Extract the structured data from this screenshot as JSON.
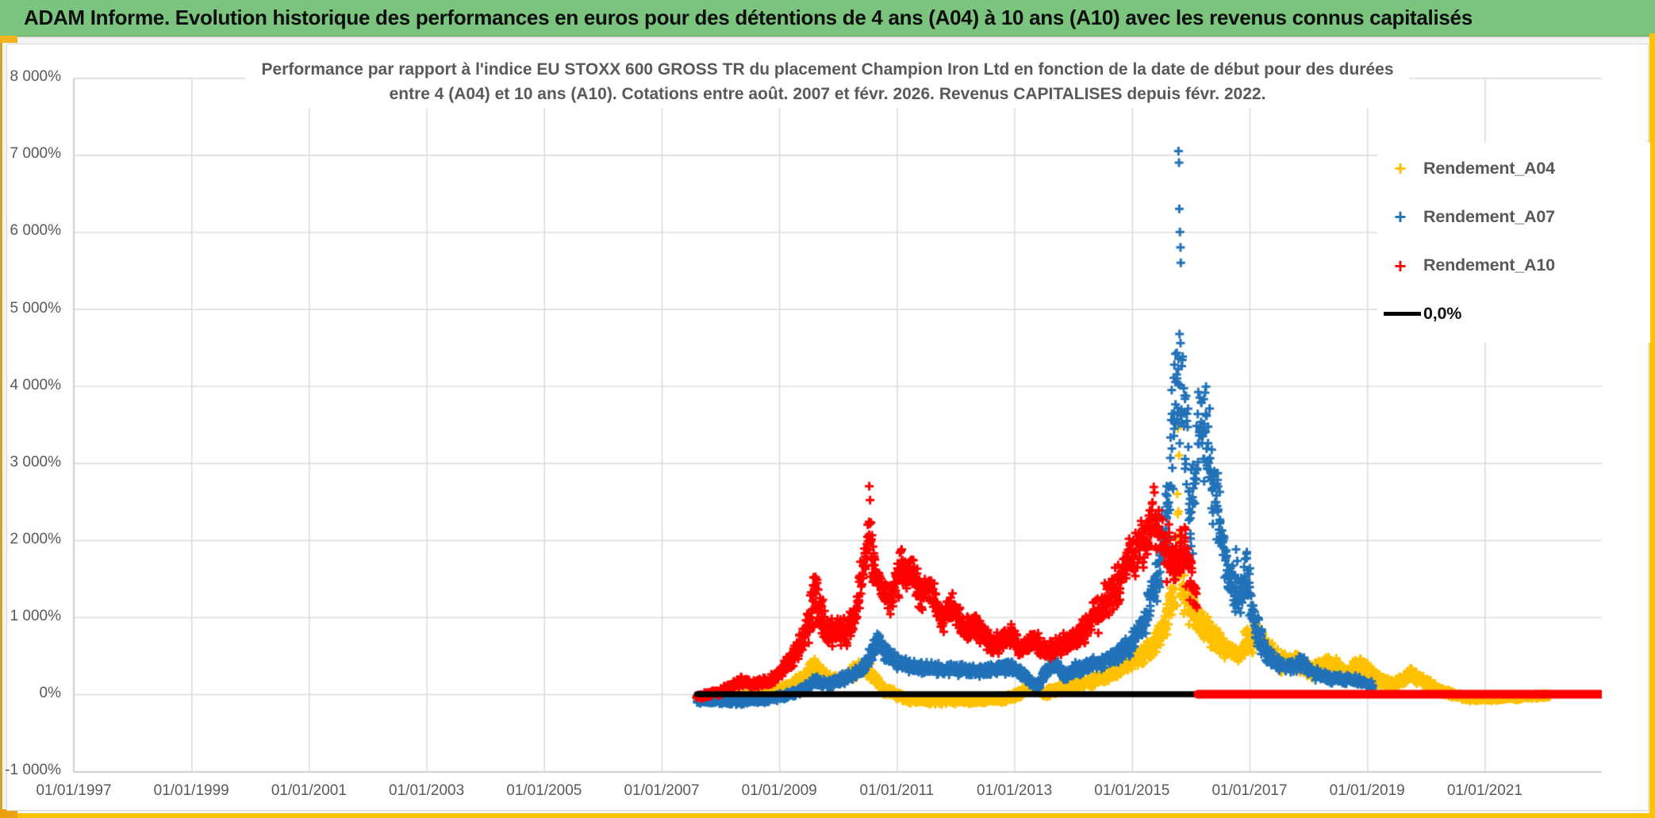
{
  "header": {
    "title": "ADAM Informe. Evolution historique des performances en euros pour des détentions de 4 ans (A04) à 10 ans (A10) avec les revenus connus capitalisés"
  },
  "colors": {
    "header_bg": "#7ac47e",
    "gold": "#ffc000",
    "accent_gold": "#f0b41c",
    "grid": "#d9d9d9",
    "axis_text": "#595959",
    "series_a04": "#ffc000",
    "series_a07": "#2272b8",
    "series_a10": "#ff0000",
    "zero_line": "#000000"
  },
  "chart_data": {
    "type": "scatter",
    "title_line1": "Performance par rapport à l'indice EU STOXX 600 GROSS TR  du placement Champion Iron Ltd en fonction de la date de début pour des durées",
    "title_line2": "entre 4 (A04) et 10 ans (A10). Cotations entre août. 2007 et févr. 2026. Revenus CAPITALISES depuis févr. 2022.",
    "grid": true,
    "legend_position": "top-right",
    "x_axis": {
      "label_format": "dd/mm/yyyy",
      "tick_years": [
        1997,
        1999,
        2001,
        2003,
        2005,
        2007,
        2009,
        2011,
        2013,
        2015,
        2017,
        2019,
        2021
      ],
      "tick_labels": [
        "01/01/1997",
        "01/01/1999",
        "01/01/2001",
        "01/01/2003",
        "01/01/2005",
        "01/01/2007",
        "01/01/2009",
        "01/01/2011",
        "01/01/2013",
        "01/01/2015",
        "01/01/2017",
        "01/01/2019",
        "01/01/2021"
      ],
      "min_year": 1997,
      "max_year": 2023
    },
    "y_axis": {
      "tick_values": [
        8000,
        7000,
        6000,
        5000,
        4000,
        3000,
        2000,
        1000,
        0,
        -1000
      ],
      "tick_labels": [
        "8 000%",
        "7 000%",
        "6 000%",
        "5 000%",
        "4 000%",
        "3 000%",
        "2 000%",
        "1 000%",
        "0%",
        "-1 000%"
      ],
      "min": -1000,
      "max": 8000,
      "step": 1000
    },
    "legend": [
      {
        "label": "Rendement_A04",
        "color": "#ffc000",
        "marker": "plus"
      },
      {
        "label": "Rendement_A07",
        "color": "#2272b8",
        "marker": "plus"
      },
      {
        "label": "Rendement_A10",
        "color": "#ff0000",
        "marker": "plus"
      },
      {
        "label": "0,0%",
        "color": "#000000",
        "marker": "line"
      }
    ],
    "series": [
      {
        "name": "Rendement_A04",
        "color": "#ffc000",
        "band": [
          [
            2007.6,
            -70,
            -10
          ],
          [
            2008.2,
            -70,
            10
          ],
          [
            2008.8,
            -40,
            60
          ],
          [
            2009.15,
            20,
            160
          ],
          [
            2009.4,
            110,
            280
          ],
          [
            2009.6,
            280,
            500
          ],
          [
            2009.75,
            140,
            340
          ],
          [
            2009.95,
            110,
            250
          ],
          [
            2010.15,
            140,
            320
          ],
          [
            2010.4,
            240,
            480
          ],
          [
            2010.55,
            180,
            400
          ],
          [
            2010.8,
            -40,
            120
          ],
          [
            2011.2,
            -120,
            -10
          ],
          [
            2011.6,
            -140,
            -40
          ],
          [
            2012.0,
            -130,
            -30
          ],
          [
            2012.4,
            -140,
            -40
          ],
          [
            2012.8,
            -110,
            -10
          ],
          [
            2013.1,
            -60,
            70
          ],
          [
            2013.3,
            60,
            200
          ],
          [
            2013.5,
            -50,
            70
          ],
          [
            2013.7,
            -10,
            130
          ],
          [
            2013.95,
            40,
            190
          ],
          [
            2014.25,
            70,
            230
          ],
          [
            2014.6,
            150,
            360
          ],
          [
            2014.9,
            260,
            490
          ],
          [
            2015.2,
            360,
            660
          ],
          [
            2015.45,
            520,
            920
          ],
          [
            2015.6,
            720,
            1250
          ],
          [
            2015.73,
            950,
            1900
          ],
          [
            2015.79,
            1100,
            3000
          ],
          [
            2015.88,
            950,
            1650
          ],
          [
            2016.0,
            820,
            1420
          ],
          [
            2016.2,
            700,
            1200
          ],
          [
            2016.5,
            460,
            820
          ],
          [
            2016.8,
            360,
            660
          ],
          [
            2017.0,
            520,
            960
          ],
          [
            2017.2,
            540,
            940
          ],
          [
            2017.35,
            380,
            720
          ],
          [
            2017.55,
            250,
            520
          ],
          [
            2017.8,
            300,
            610
          ],
          [
            2018.05,
            190,
            420
          ],
          [
            2018.35,
            260,
            560
          ],
          [
            2018.65,
            150,
            380
          ],
          [
            2018.9,
            250,
            510
          ],
          [
            2019.15,
            110,
            300
          ],
          [
            2019.45,
            60,
            200
          ],
          [
            2019.75,
            150,
            360
          ],
          [
            2020.0,
            60,
            220
          ],
          [
            2020.35,
            -40,
            80
          ],
          [
            2020.7,
            -90,
            -10
          ],
          [
            2021.1,
            -100,
            -20
          ],
          [
            2021.5,
            -80,
            -10
          ],
          [
            2021.9,
            -60,
            10
          ],
          [
            2022.1,
            -50,
            20
          ]
        ],
        "outliers": [
          [
            2015.77,
            2600
          ],
          [
            2015.78,
            3450
          ],
          [
            2015.8,
            3100
          ]
        ]
      },
      {
        "name": "Rendement_A07",
        "color": "#2272b8",
        "band": [
          [
            2007.6,
            -120,
            -50
          ],
          [
            2008.3,
            -140,
            -60
          ],
          [
            2008.8,
            -110,
            -30
          ],
          [
            2009.1,
            -70,
            30
          ],
          [
            2009.4,
            0,
            120
          ],
          [
            2009.6,
            80,
            250
          ],
          [
            2009.8,
            60,
            190
          ],
          [
            2010.0,
            100,
            250
          ],
          [
            2010.25,
            150,
            340
          ],
          [
            2010.45,
            260,
            460
          ],
          [
            2010.6,
            430,
            720
          ],
          [
            2010.68,
            560,
            800
          ],
          [
            2010.8,
            430,
            660
          ],
          [
            2011.0,
            300,
            520
          ],
          [
            2011.3,
            270,
            450
          ],
          [
            2011.7,
            240,
            420
          ],
          [
            2012.1,
            230,
            410
          ],
          [
            2012.5,
            210,
            390
          ],
          [
            2012.9,
            250,
            440
          ],
          [
            2013.1,
            200,
            370
          ],
          [
            2013.25,
            110,
            260
          ],
          [
            2013.4,
            30,
            170
          ],
          [
            2013.55,
            210,
            430
          ],
          [
            2013.7,
            290,
            510
          ],
          [
            2013.85,
            150,
            330
          ],
          [
            2014.05,
            230,
            420
          ],
          [
            2014.35,
            290,
            490
          ],
          [
            2014.65,
            350,
            570
          ],
          [
            2014.95,
            460,
            760
          ],
          [
            2015.2,
            700,
            1120
          ],
          [
            2015.45,
            1100,
            1950
          ],
          [
            2015.6,
            1750,
            2950
          ],
          [
            2015.72,
            2550,
            4650
          ],
          [
            2015.8,
            3100,
            5300
          ],
          [
            2015.9,
            2600,
            4550
          ],
          [
            2016.0,
            1500,
            2950
          ],
          [
            2016.15,
            2700,
            4400
          ],
          [
            2016.3,
            2500,
            3900
          ],
          [
            2016.45,
            1800,
            3100
          ],
          [
            2016.6,
            1300,
            2050
          ],
          [
            2016.77,
            950,
            1550
          ],
          [
            2016.95,
            1050,
            1950
          ],
          [
            2017.1,
            620,
            1150
          ],
          [
            2017.3,
            360,
            620
          ],
          [
            2017.5,
            280,
            500
          ],
          [
            2017.7,
            250,
            460
          ],
          [
            2017.9,
            300,
            530
          ],
          [
            2018.1,
            180,
            360
          ],
          [
            2018.4,
            120,
            270
          ],
          [
            2018.7,
            130,
            290
          ],
          [
            2018.95,
            80,
            210
          ],
          [
            2019.1,
            60,
            170
          ]
        ],
        "outliers": [
          [
            2015.79,
            7050
          ],
          [
            2015.8,
            6900
          ],
          [
            2015.805,
            6300
          ],
          [
            2015.815,
            6000
          ],
          [
            2015.825,
            5800
          ],
          [
            2015.83,
            5600
          ],
          [
            2016.77,
            1880
          ],
          [
            2016.79,
            1730
          ]
        ]
      },
      {
        "name": "Rendement_A10",
        "color": "#ff0000",
        "band": [
          [
            2007.6,
            -70,
            0
          ],
          [
            2008.0,
            -20,
            90
          ],
          [
            2008.35,
            80,
            240
          ],
          [
            2008.6,
            60,
            190
          ],
          [
            2008.9,
            100,
            270
          ],
          [
            2009.15,
            260,
            530
          ],
          [
            2009.35,
            430,
            820
          ],
          [
            2009.5,
            650,
            1120
          ],
          [
            2009.62,
            900,
            1800
          ],
          [
            2009.72,
            700,
            1320
          ],
          [
            2009.85,
            550,
            960
          ],
          [
            2010.0,
            650,
            1060
          ],
          [
            2010.15,
            600,
            1010
          ],
          [
            2010.3,
            800,
            1320
          ],
          [
            2010.45,
            1300,
            2120
          ],
          [
            2010.52,
            1600,
            2700
          ],
          [
            2010.62,
            1300,
            1850
          ],
          [
            2010.75,
            1100,
            1550
          ],
          [
            2010.9,
            1000,
            1470
          ],
          [
            2011.05,
            1250,
            1900
          ],
          [
            2011.25,
            1350,
            1880
          ],
          [
            2011.4,
            1050,
            1600
          ],
          [
            2011.55,
            1150,
            1650
          ],
          [
            2011.75,
            750,
            1250
          ],
          [
            2011.95,
            950,
            1350
          ],
          [
            2012.15,
            650,
            1000
          ],
          [
            2012.35,
            700,
            1080
          ],
          [
            2012.55,
            550,
            880
          ],
          [
            2012.75,
            480,
            800
          ],
          [
            2012.95,
            580,
            960
          ],
          [
            2013.1,
            430,
            680
          ],
          [
            2013.3,
            560,
            860
          ],
          [
            2013.45,
            480,
            760
          ],
          [
            2013.6,
            430,
            700
          ],
          [
            2013.8,
            490,
            790
          ],
          [
            2014.0,
            560,
            890
          ],
          [
            2014.2,
            650,
            1060
          ],
          [
            2014.45,
            800,
            1350
          ],
          [
            2014.7,
            1050,
            1650
          ],
          [
            2014.9,
            1300,
            2000
          ],
          [
            2015.1,
            1500,
            2220
          ],
          [
            2015.3,
            1750,
            2500
          ],
          [
            2015.38,
            1900,
            2690
          ],
          [
            2015.55,
            1500,
            2330
          ],
          [
            2015.72,
            1300,
            2120
          ],
          [
            2015.9,
            1420,
            2260
          ],
          [
            2016.0,
            1150,
            1850
          ],
          [
            2016.1,
            950,
            1500
          ]
        ],
        "outliers": [
          [
            2010.53,
            2700
          ],
          [
            2010.545,
            2520
          ],
          [
            2010.56,
            2230
          ],
          [
            2015.37,
            2690
          ]
        ]
      }
    ],
    "lines": [
      {
        "name": "0,0%",
        "color": "#000000",
        "value": 0,
        "t_start": 2007.6,
        "t_end": 2022.85,
        "width": 7.5
      },
      {
        "name": "Rendement_A10_zero_tail",
        "color": "#ff0000",
        "value": 0,
        "t_start": 2016.12,
        "t_end": 2023.0,
        "width": 11
      }
    ]
  }
}
